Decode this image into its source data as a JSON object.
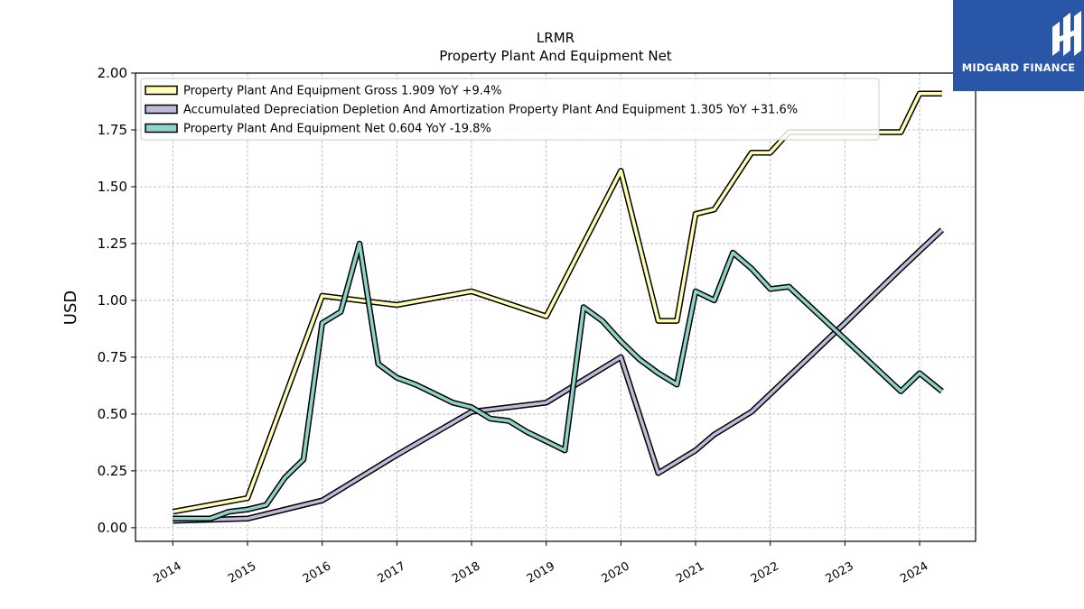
{
  "brand": {
    "name": "MIDGARD FINANCE",
    "bg_color": "#2a56a8",
    "icon": "midgard-logo-icon"
  },
  "chart_data": {
    "type": "line",
    "title": "LRMR",
    "subtitle": "Property Plant And Equipment Net",
    "ylabel": "USD",
    "xlabel": "",
    "xlim": [
      2013.5,
      2024.75
    ],
    "ylim": [
      -0.06,
      2.0
    ],
    "yticks": [
      0.0,
      0.25,
      0.5,
      0.75,
      1.0,
      1.25,
      1.5,
      1.75,
      2.0
    ],
    "ytick_labels": [
      "0.00",
      "0.25",
      "0.50",
      "0.75",
      "1.00",
      "1.25",
      "1.50",
      "1.75",
      "2.00"
    ],
    "xticks": [
      2014,
      2015,
      2016,
      2017,
      2018,
      2019,
      2020,
      2021,
      2022,
      2023,
      2024
    ],
    "xtick_labels": [
      "2014",
      "2015",
      "2016",
      "2017",
      "2018",
      "2019",
      "2020",
      "2021",
      "2022",
      "2023",
      "2024"
    ],
    "grid": true,
    "legend_position": "top-left",
    "series": [
      {
        "name": "Property Plant And Equipment Gross",
        "legend_label": "Property Plant And Equipment Gross  1.909 YoY +9.4%",
        "color": "#ffffb3",
        "points": [
          [
            2014.0,
            0.07
          ],
          [
            2015.0,
            0.13
          ],
          [
            2016.0,
            1.02
          ],
          [
            2017.0,
            0.98
          ],
          [
            2018.0,
            1.04
          ],
          [
            2019.0,
            0.93
          ],
          [
            2020.0,
            1.57
          ],
          [
            2020.5,
            0.91
          ],
          [
            2020.75,
            0.91
          ],
          [
            2021.0,
            1.38
          ],
          [
            2021.25,
            1.4
          ],
          [
            2021.75,
            1.65
          ],
          [
            2022.0,
            1.65
          ],
          [
            2022.25,
            1.74
          ],
          [
            2023.75,
            1.74
          ],
          [
            2024.0,
            1.91
          ],
          [
            2024.3,
            1.91
          ]
        ]
      },
      {
        "name": "Accumulated Depreciation Depletion And Amortization Property Plant And Equipment",
        "legend_label": "Accumulated Depreciation Depletion And Amortization Property Plant And Equipment  1.305 YoY +31.6%",
        "color": "#bebada",
        "points": [
          [
            2014.0,
            0.03
          ],
          [
            2015.0,
            0.04
          ],
          [
            2016.0,
            0.12
          ],
          [
            2017.0,
            0.32
          ],
          [
            2018.0,
            0.51
          ],
          [
            2019.0,
            0.55
          ],
          [
            2020.0,
            0.75
          ],
          [
            2020.5,
            0.24
          ],
          [
            2021.0,
            0.34
          ],
          [
            2021.25,
            0.41
          ],
          [
            2021.75,
            0.51
          ],
          [
            2023.0,
            0.9
          ],
          [
            2023.75,
            1.14
          ],
          [
            2024.3,
            1.31
          ]
        ]
      },
      {
        "name": "Property Plant And Equipment Net",
        "legend_label": "Property Plant And Equipment Net  0.604 YoY -19.8%",
        "color": "#8dd3c7",
        "points": [
          [
            2014.0,
            0.04
          ],
          [
            2014.5,
            0.04
          ],
          [
            2014.75,
            0.07
          ],
          [
            2015.0,
            0.08
          ],
          [
            2015.25,
            0.1
          ],
          [
            2015.5,
            0.22
          ],
          [
            2015.75,
            0.3
          ],
          [
            2016.0,
            0.9
          ],
          [
            2016.25,
            0.95
          ],
          [
            2016.5,
            1.25
          ],
          [
            2016.75,
            0.72
          ],
          [
            2017.0,
            0.66
          ],
          [
            2017.25,
            0.63
          ],
          [
            2017.5,
            0.59
          ],
          [
            2017.75,
            0.55
          ],
          [
            2018.0,
            0.53
          ],
          [
            2018.25,
            0.48
          ],
          [
            2018.5,
            0.47
          ],
          [
            2018.75,
            0.42
          ],
          [
            2019.0,
            0.38
          ],
          [
            2019.25,
            0.34
          ],
          [
            2019.5,
            0.97
          ],
          [
            2019.75,
            0.91
          ],
          [
            2020.0,
            0.82
          ],
          [
            2020.25,
            0.74
          ],
          [
            2020.5,
            0.68
          ],
          [
            2020.75,
            0.63
          ],
          [
            2021.0,
            1.04
          ],
          [
            2021.25,
            1.0
          ],
          [
            2021.5,
            1.21
          ],
          [
            2021.75,
            1.14
          ],
          [
            2022.0,
            1.05
          ],
          [
            2022.25,
            1.06
          ],
          [
            2023.75,
            0.6
          ],
          [
            2024.0,
            0.68
          ],
          [
            2024.3,
            0.6
          ]
        ]
      }
    ]
  }
}
